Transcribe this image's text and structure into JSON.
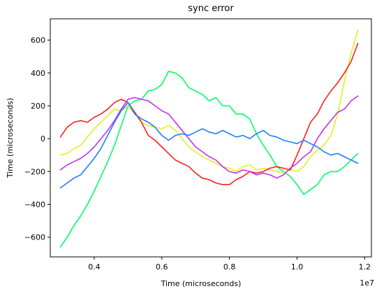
{
  "chart_data": {
    "type": "line",
    "title": "sync error",
    "xlabel": "Time (microseconds)",
    "ylabel": "Time (microseconds)",
    "x_offset_label": "1e7",
    "xlim": [
      0.27,
      1.22
    ],
    "ylim": [
      -720,
      730
    ],
    "xticks": [
      0.4,
      0.6,
      0.8,
      1.0,
      1.2
    ],
    "xtick_labels": [
      "0.4",
      "0.6",
      "0.8",
      "1.0",
      "1.2"
    ],
    "yticks": [
      -600,
      -400,
      -200,
      0,
      200,
      400,
      600
    ],
    "ytick_labels": [
      "−600",
      "−400",
      "−200",
      "0",
      "200",
      "400",
      "600"
    ],
    "grid": false,
    "series": [
      {
        "color": "#00ff66",
        "x": [
          0.3,
          0.32,
          0.34,
          0.36,
          0.38,
          0.4,
          0.42,
          0.44,
          0.46,
          0.48,
          0.5,
          0.52,
          0.54,
          0.56,
          0.58,
          0.6,
          0.62,
          0.64,
          0.66,
          0.68,
          0.7,
          0.72,
          0.74,
          0.76,
          0.78,
          0.8,
          0.82,
          0.84,
          0.86,
          0.88,
          0.9,
          0.92,
          0.94,
          0.96,
          0.98,
          1.0,
          1.02,
          1.04,
          1.06,
          1.08,
          1.1,
          1.12,
          1.14,
          1.16,
          1.18
        ],
        "y": [
          -660,
          -600,
          -530,
          -470,
          -400,
          -320,
          -230,
          -140,
          -40,
          80,
          200,
          230,
          240,
          290,
          300,
          330,
          410,
          400,
          370,
          310,
          290,
          270,
          230,
          250,
          200,
          200,
          150,
          150,
          120,
          30,
          -40,
          -100,
          -170,
          -200,
          -230,
          -280,
          -340,
          -310,
          -280,
          -220,
          -200,
          -200,
          -170,
          -130,
          -90
        ]
      },
      {
        "color": "#e0f020",
        "x": [
          0.3,
          0.32,
          0.34,
          0.36,
          0.38,
          0.4,
          0.42,
          0.44,
          0.46,
          0.48,
          0.5,
          0.52,
          0.54,
          0.56,
          0.58,
          0.6,
          0.62,
          0.64,
          0.66,
          0.68,
          0.7,
          0.72,
          0.74,
          0.76,
          0.78,
          0.8,
          0.82,
          0.84,
          0.86,
          0.88,
          0.9,
          0.92,
          0.94,
          0.96,
          0.98,
          1.0,
          1.02,
          1.04,
          1.06,
          1.08,
          1.1,
          1.12,
          1.14,
          1.16,
          1.18
        ],
        "y": [
          -100,
          -90,
          -60,
          -40,
          10,
          60,
          100,
          140,
          180,
          170,
          200,
          150,
          100,
          80,
          70,
          60,
          80,
          50,
          0,
          -50,
          -80,
          -110,
          -130,
          -150,
          -170,
          -180,
          -200,
          -170,
          -160,
          -190,
          -180,
          -190,
          -200,
          -210,
          -190,
          -200,
          -170,
          -110,
          -70,
          -40,
          20,
          150,
          350,
          520,
          660
        ]
      },
      {
        "color": "#ff1e1e",
        "x": [
          0.3,
          0.32,
          0.34,
          0.36,
          0.38,
          0.4,
          0.42,
          0.44,
          0.46,
          0.48,
          0.5,
          0.52,
          0.54,
          0.56,
          0.58,
          0.6,
          0.62,
          0.64,
          0.66,
          0.68,
          0.7,
          0.72,
          0.74,
          0.76,
          0.78,
          0.8,
          0.82,
          0.84,
          0.86,
          0.88,
          0.9,
          0.92,
          0.94,
          0.96,
          0.98,
          1.0,
          1.02,
          1.04,
          1.06,
          1.08,
          1.1,
          1.12,
          1.14,
          1.16,
          1.18
        ],
        "y": [
          10,
          70,
          100,
          110,
          100,
          130,
          150,
          180,
          220,
          240,
          220,
          160,
          100,
          20,
          -10,
          -50,
          -90,
          -130,
          -150,
          -170,
          -210,
          -240,
          -250,
          -270,
          -280,
          -280,
          -250,
          -230,
          -200,
          -210,
          -200,
          -180,
          -170,
          -180,
          -190,
          -100,
          0,
          100,
          150,
          230,
          290,
          340,
          400,
          470,
          580
        ]
      },
      {
        "color": "#c030f0",
        "x": [
          0.3,
          0.32,
          0.34,
          0.36,
          0.38,
          0.4,
          0.42,
          0.44,
          0.46,
          0.48,
          0.5,
          0.52,
          0.54,
          0.56,
          0.58,
          0.6,
          0.62,
          0.64,
          0.66,
          0.68,
          0.7,
          0.72,
          0.74,
          0.76,
          0.78,
          0.8,
          0.82,
          0.84,
          0.86,
          0.88,
          0.9,
          0.92,
          0.94,
          0.96,
          0.98,
          1.0,
          1.02,
          1.04,
          1.06,
          1.08,
          1.1,
          1.12,
          1.14,
          1.16,
          1.18
        ],
        "y": [
          -190,
          -160,
          -140,
          -120,
          -90,
          -50,
          0,
          50,
          110,
          180,
          240,
          250,
          240,
          230,
          200,
          170,
          150,
          100,
          50,
          0,
          -50,
          -80,
          -110,
          -130,
          -170,
          -200,
          -210,
          -190,
          -200,
          -220,
          -210,
          -220,
          -240,
          -220,
          -180,
          -150,
          -110,
          -80,
          0,
          60,
          110,
          160,
          180,
          230,
          260
        ]
      },
      {
        "color": "#1e7cff",
        "x": [
          0.3,
          0.32,
          0.34,
          0.36,
          0.38,
          0.4,
          0.42,
          0.44,
          0.46,
          0.48,
          0.5,
          0.52,
          0.54,
          0.56,
          0.58,
          0.6,
          0.62,
          0.64,
          0.66,
          0.68,
          0.7,
          0.72,
          0.74,
          0.76,
          0.78,
          0.8,
          0.82,
          0.84,
          0.86,
          0.88,
          0.9,
          0.92,
          0.94,
          0.96,
          0.98,
          1.0,
          1.02,
          1.04,
          1.06,
          1.08,
          1.1,
          1.12,
          1.14,
          1.16,
          1.18
        ],
        "y": [
          -300,
          -270,
          -240,
          -220,
          -170,
          -120,
          -60,
          20,
          100,
          170,
          220,
          150,
          120,
          100,
          70,
          20,
          -10,
          20,
          30,
          20,
          40,
          60,
          40,
          30,
          50,
          30,
          10,
          20,
          0,
          30,
          50,
          20,
          10,
          -10,
          -20,
          -30,
          -10,
          -30,
          -50,
          -80,
          -100,
          -90,
          -110,
          -130,
          -150
        ]
      }
    ]
  }
}
